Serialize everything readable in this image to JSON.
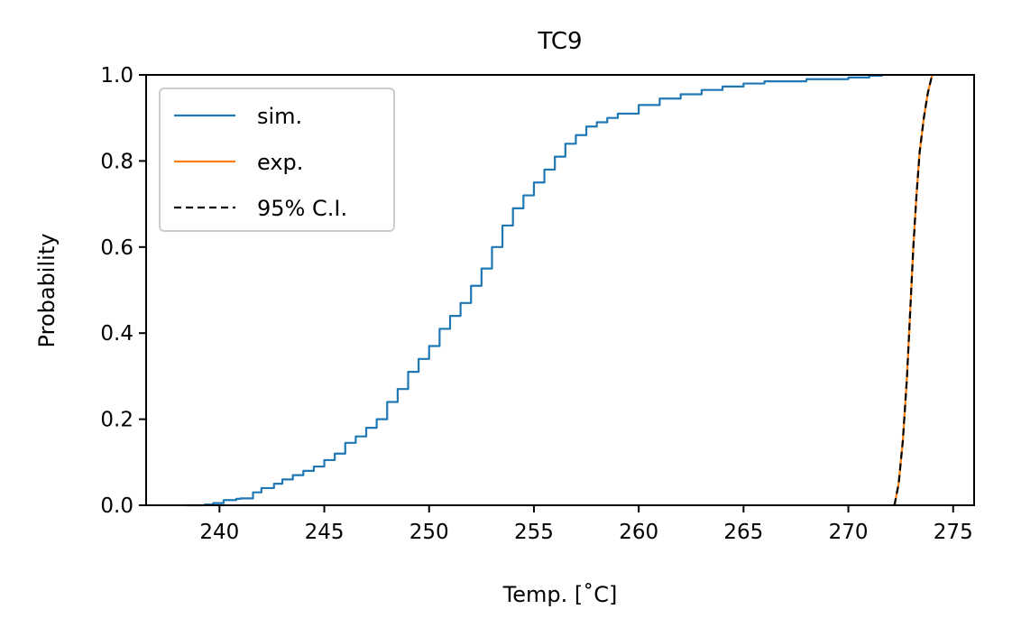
{
  "chart_data": {
    "type": "line",
    "title": "TC9",
    "xlabel": "Temp. [˚C]",
    "ylabel": "Probability",
    "xlim": [
      236.5,
      276.0
    ],
    "ylim": [
      0.0,
      1.0
    ],
    "xticks": [
      240,
      245,
      250,
      255,
      260,
      265,
      270,
      275
    ],
    "yticks": [
      0.0,
      0.2,
      0.4,
      0.6,
      0.8,
      1.0
    ],
    "xtick_labels": [
      "240",
      "245",
      "250",
      "255",
      "260",
      "265",
      "270",
      "275"
    ],
    "ytick_labels": [
      "0.0",
      "0.2",
      "0.4",
      "0.6",
      "0.8",
      "1.0"
    ],
    "grid": false,
    "legend_position": "top-left",
    "series": [
      {
        "name": "sim.",
        "color": "#1f77b4",
        "style": "step",
        "x": [
          238.3,
          239.3,
          239.7,
          240.2,
          240.8,
          241.0,
          241.6,
          242.0,
          242.6,
          243.0,
          243.5,
          244.0,
          244.5,
          245.0,
          245.5,
          246.0,
          246.5,
          247.0,
          247.5,
          248.0,
          248.5,
          249.0,
          249.5,
          250.0,
          250.5,
          251.0,
          251.5,
          252.0,
          252.5,
          253.0,
          253.5,
          254.0,
          254.5,
          255.0,
          255.5,
          256.0,
          256.5,
          257.0,
          257.5,
          258.0,
          258.5,
          259.0,
          260.0,
          261.0,
          262.0,
          263.0,
          264.0,
          265.0,
          266.0,
          268.0,
          270.0,
          271.0,
          271.6
        ],
        "y": [
          0.0,
          0.002,
          0.005,
          0.012,
          0.015,
          0.016,
          0.03,
          0.04,
          0.05,
          0.06,
          0.07,
          0.08,
          0.09,
          0.105,
          0.12,
          0.145,
          0.16,
          0.18,
          0.2,
          0.24,
          0.27,
          0.31,
          0.34,
          0.37,
          0.41,
          0.44,
          0.47,
          0.51,
          0.55,
          0.6,
          0.65,
          0.69,
          0.72,
          0.75,
          0.78,
          0.81,
          0.84,
          0.86,
          0.88,
          0.89,
          0.9,
          0.91,
          0.93,
          0.945,
          0.955,
          0.965,
          0.973,
          0.98,
          0.985,
          0.99,
          0.994,
          0.998,
          1.0
        ]
      },
      {
        "name": "exp.",
        "color": "#ff7f0e",
        "style": "line",
        "x": [
          272.2,
          272.4,
          272.6,
          272.8,
          272.95,
          273.1,
          273.25,
          273.4,
          273.6,
          273.8,
          274.0
        ],
        "y": [
          0.0,
          0.05,
          0.15,
          0.3,
          0.45,
          0.6,
          0.72,
          0.82,
          0.9,
          0.96,
          1.0
        ]
      },
      {
        "name": "95% C.I.",
        "color": "#000000",
        "style": "dashed",
        "x": [
          272.2,
          272.4,
          272.6,
          272.8,
          272.95,
          273.1,
          273.25,
          273.4,
          273.6,
          273.8,
          274.0
        ],
        "y": [
          0.0,
          0.05,
          0.15,
          0.3,
          0.45,
          0.6,
          0.72,
          0.82,
          0.9,
          0.96,
          1.0
        ]
      }
    ]
  }
}
